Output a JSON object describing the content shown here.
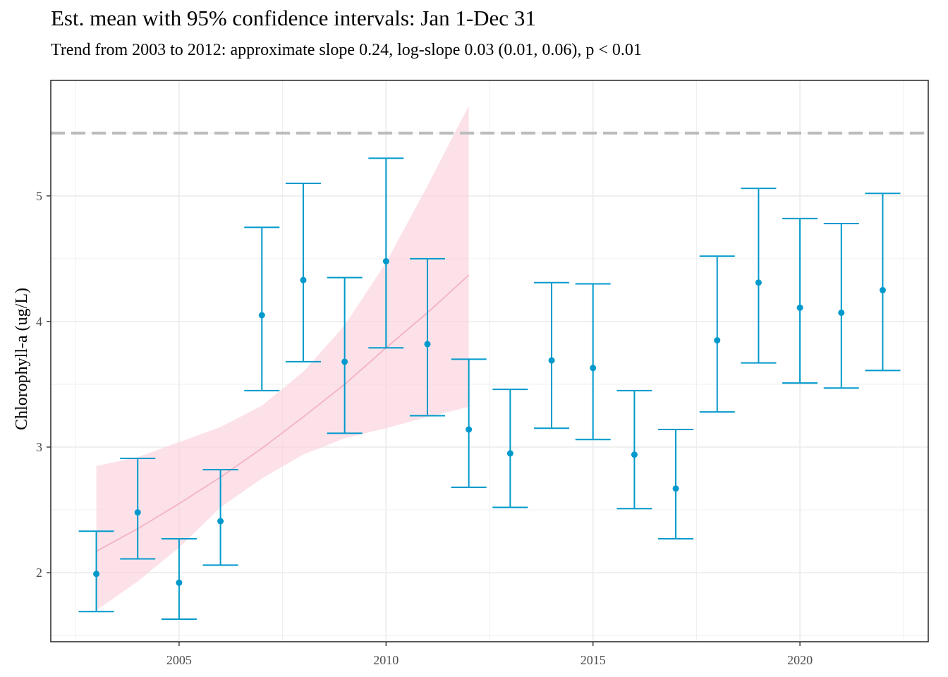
{
  "chart_data": {
    "type": "line",
    "title": "Est. mean with 95% confidence intervals: Jan 1-Dec 31",
    "subtitle": "Trend from 2003 to 2012: approximate slope 0.24, log-slope 0.03 (0.01, 0.06), p < 0.01",
    "xlabel": "",
    "ylabel": "Chlorophyll-a (ug/L)",
    "xlim": [
      2001.9,
      2023.1
    ],
    "ylim": [
      1.45,
      5.92
    ],
    "x_ticks": [
      2005,
      2010,
      2015,
      2020
    ],
    "y_ticks": [
      2,
      3,
      4,
      5
    ],
    "grid": true,
    "reference_line": {
      "y": 5.5,
      "style": "dashed",
      "color": "#bdbdbd"
    },
    "colors": {
      "points": "#0099cc",
      "trend_line": "#f4b6c7",
      "trend_band": "#fbd3dc",
      "grid": "#ebebeb"
    },
    "series": [
      {
        "type": "errorbar",
        "x": [
          2003,
          2004,
          2005,
          2006,
          2007,
          2008,
          2009,
          2010,
          2011,
          2012,
          2013,
          2014,
          2015,
          2016,
          2017,
          2018,
          2019,
          2020,
          2021,
          2022
        ],
        "y": [
          1.99,
          2.48,
          1.92,
          2.41,
          4.05,
          4.33,
          3.68,
          4.48,
          3.82,
          3.14,
          2.95,
          3.69,
          3.63,
          2.94,
          2.67,
          3.85,
          4.31,
          4.11,
          4.07,
          4.25
        ],
        "lower": [
          1.69,
          2.11,
          1.63,
          2.06,
          3.45,
          3.68,
          3.11,
          3.79,
          3.25,
          2.68,
          2.52,
          3.15,
          3.06,
          2.51,
          2.27,
          3.28,
          3.67,
          3.51,
          3.47,
          3.61
        ],
        "upper": [
          2.33,
          2.91,
          2.27,
          2.82,
          4.75,
          5.1,
          4.35,
          5.3,
          4.5,
          3.7,
          3.46,
          4.31,
          4.3,
          3.45,
          3.14,
          4.52,
          5.06,
          4.82,
          4.78,
          5.02
        ]
      },
      {
        "type": "trend",
        "x": [
          2003,
          2004,
          2005,
          2006,
          2007,
          2008,
          2009,
          2010,
          2011,
          2012
        ],
        "y": [
          2.17,
          2.35,
          2.55,
          2.76,
          2.99,
          3.24,
          3.5,
          3.79,
          4.07,
          4.37
        ],
        "lower": [
          1.7,
          1.93,
          2.2,
          2.52,
          2.75,
          2.94,
          3.07,
          3.15,
          3.24,
          3.32
        ],
        "upper": [
          2.85,
          2.92,
          3.04,
          3.16,
          3.33,
          3.6,
          3.97,
          4.47,
          5.08,
          5.72
        ]
      }
    ]
  }
}
